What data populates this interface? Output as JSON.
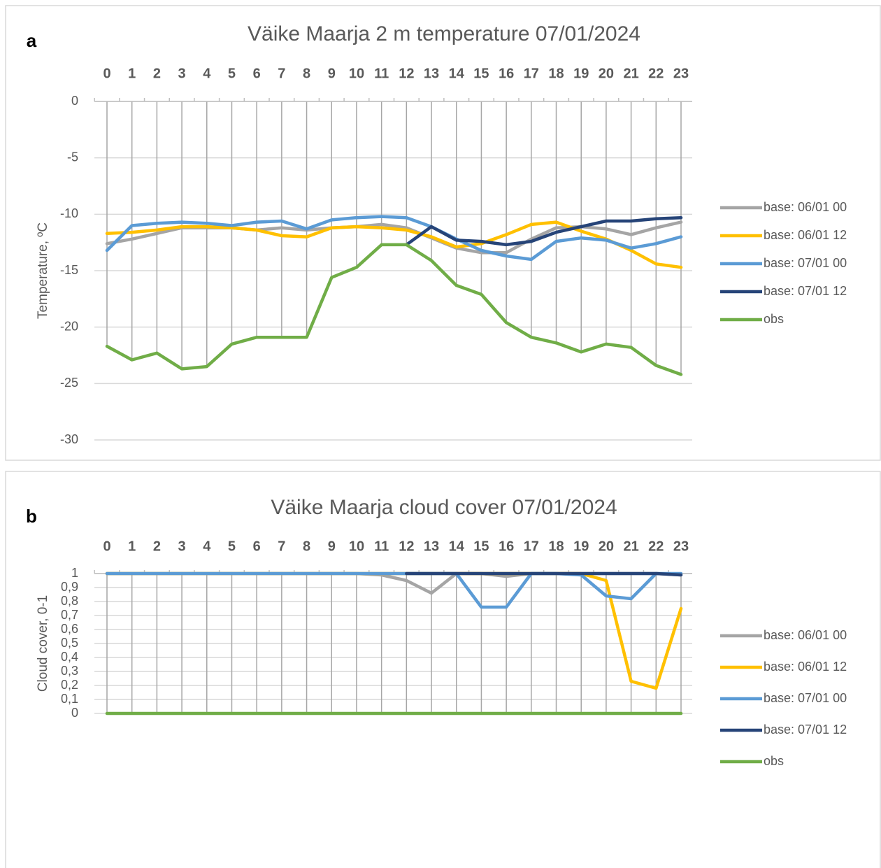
{
  "chart_data": [
    {
      "type": "line",
      "label": "a",
      "title": "Väike Maarja 2 m temperature 07/01/2024",
      "y_label": "Temperature, ºC",
      "categories": [
        "0",
        "1",
        "2",
        "3",
        "4",
        "5",
        "6",
        "7",
        "8",
        "9",
        "10",
        "11",
        "12",
        "13",
        "14",
        "15",
        "16",
        "17",
        "18",
        "19",
        "20",
        "21",
        "22",
        "23"
      ],
      "ylim": [
        -30,
        0
      ],
      "yticks": [
        -30,
        -25,
        -20,
        -15,
        -10,
        -5,
        0
      ],
      "grid": true,
      "legend": "right",
      "series": [
        {
          "name": "base: 06/01 00",
          "color": "#a5a5a5",
          "values": [
            -12.6,
            -12.2,
            -11.7,
            -11.2,
            -11.2,
            -11.2,
            -11.4,
            -11.2,
            -11.4,
            -11.2,
            -11.1,
            -10.9,
            -11.2,
            -12.1,
            -13.0,
            -13.4,
            -13.4,
            -12.2,
            -11.2,
            -11.1,
            -11.3,
            -11.8,
            -11.2,
            -10.7
          ]
        },
        {
          "name": "base: 06/01 12",
          "color": "#ffc000",
          "values": [
            -11.7,
            -11.6,
            -11.4,
            -11.1,
            -11.1,
            -11.2,
            -11.4,
            -11.9,
            -12.0,
            -11.2,
            -11.1,
            -11.2,
            -11.4,
            -12.0,
            -12.9,
            -12.6,
            -11.8,
            -10.9,
            -10.7,
            -11.5,
            -12.2,
            -13.2,
            -14.4,
            -14.7
          ]
        },
        {
          "name": "base: 07/01 00",
          "color": "#5b9bd5",
          "values": [
            -13.2,
            -11.0,
            -10.8,
            -10.7,
            -10.8,
            -11.0,
            -10.7,
            -10.6,
            -11.3,
            -10.5,
            -10.3,
            -10.2,
            -10.3,
            -11.1,
            -12.2,
            -13.2,
            -13.7,
            -14.0,
            -12.4,
            -12.1,
            -12.3,
            -13.0,
            -12.6,
            -12.0
          ]
        },
        {
          "name": "base: 07/01 12",
          "color": "#264478",
          "values": [
            null,
            null,
            null,
            null,
            null,
            null,
            null,
            null,
            null,
            null,
            null,
            null,
            -12.7,
            -11.1,
            -12.3,
            -12.4,
            -12.7,
            -12.4,
            -11.6,
            -11.1,
            -10.6,
            -10.6,
            -10.4,
            -10.3
          ]
        },
        {
          "name": "obs",
          "color": "#70ad47",
          "values": [
            -21.7,
            -22.9,
            -22.3,
            -23.7,
            -23.5,
            -21.5,
            -20.9,
            -20.9,
            -20.9,
            -15.6,
            -14.7,
            -12.7,
            -12.7,
            -14.1,
            -16.3,
            -17.1,
            -19.6,
            -20.9,
            -21.4,
            -22.2,
            -21.5,
            -21.8,
            -23.4,
            -24.2
          ]
        }
      ]
    },
    {
      "type": "line",
      "label": "b",
      "title": "Väike Maarja cloud cover 07/01/2024",
      "y_label": "Cloud cover, 0-1",
      "categories": [
        "0",
        "1",
        "2",
        "3",
        "4",
        "5",
        "6",
        "7",
        "8",
        "9",
        "10",
        "11",
        "12",
        "13",
        "14",
        "15",
        "16",
        "17",
        "18",
        "19",
        "20",
        "21",
        "22",
        "23"
      ],
      "ylim": [
        0,
        1
      ],
      "yticks": [
        0,
        {
          "value": 0.1,
          "label": "0,1"
        },
        {
          "value": 0.2,
          "label": "0,2"
        },
        {
          "value": 0.3,
          "label": "0,3"
        },
        {
          "value": 0.4,
          "label": "0,4"
        },
        {
          "value": 0.5,
          "label": "0,5"
        },
        {
          "value": 0.6,
          "label": "0,6"
        },
        {
          "value": 0.7,
          "label": "0,7"
        },
        {
          "value": 0.8,
          "label": "0,8"
        },
        {
          "value": 0.9,
          "label": "0,9"
        },
        1
      ],
      "grid": true,
      "legend": "right",
      "series": [
        {
          "name": "base: 06/01 00",
          "color": "#a5a5a5",
          "values": [
            1,
            1,
            1,
            1,
            1,
            1,
            1,
            1,
            1,
            1,
            1,
            0.99,
            0.95,
            0.86,
            1,
            1,
            0.98,
            1,
            1,
            1,
            1,
            1,
            1,
            0.99
          ]
        },
        {
          "name": "base: 06/01 12",
          "color": "#ffc000",
          "values": [
            1,
            1,
            1,
            1,
            1,
            1,
            1,
            1,
            1,
            1,
            1,
            1,
            1,
            1,
            1,
            1,
            1,
            1,
            1,
            1,
            0.95,
            0.23,
            0.18,
            0.75
          ]
        },
        {
          "name": "base: 07/01 00",
          "color": "#5b9bd5",
          "values": [
            1,
            1,
            1,
            1,
            1,
            1,
            1,
            1,
            1,
            1,
            1,
            1,
            1,
            1,
            1,
            0.76,
            0.76,
            1,
            1,
            0.99,
            0.84,
            0.82,
            1,
            1
          ]
        },
        {
          "name": "base: 07/01 12",
          "color": "#264478",
          "values": [
            null,
            null,
            null,
            null,
            null,
            null,
            null,
            null,
            null,
            null,
            null,
            null,
            1,
            1,
            1,
            1,
            1,
            1,
            1,
            1,
            1,
            1,
            1,
            0.99
          ]
        },
        {
          "name": "obs",
          "color": "#70ad47",
          "values": [
            0,
            0,
            0,
            0,
            0,
            0,
            0,
            0,
            0,
            0,
            0,
            0,
            0,
            0,
            0,
            0,
            0,
            0,
            0,
            0,
            0,
            0,
            0,
            0
          ]
        }
      ]
    }
  ]
}
